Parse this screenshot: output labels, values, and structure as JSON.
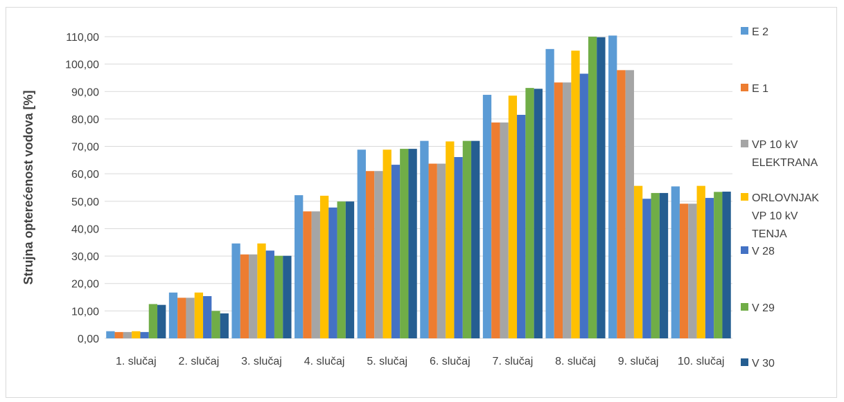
{
  "chart_data": {
    "type": "bar",
    "ylabel": "Strujna opterećenost vodova [%]",
    "xlabel": "",
    "ylim": [
      0,
      110
    ],
    "ytick_step": 10,
    "ytick_labels": [
      "0,00",
      "10,00",
      "20,00",
      "30,00",
      "40,00",
      "50,00",
      "60,00",
      "70,00",
      "80,00",
      "90,00",
      "100,00",
      "110,00"
    ],
    "grid": true,
    "legend_position": "right",
    "categories": [
      "1. slučaj",
      "2. slučaj",
      "3. slučaj",
      "4. slučaj",
      "5. slučaj",
      "6. slučaj",
      "7. slučaj",
      "8. slučaj",
      "9. slučaj",
      "10. slučaj"
    ],
    "series": [
      {
        "name": "E 2",
        "color": "#5b9bd5",
        "values": [
          2.6,
          16.7,
          34.6,
          52.2,
          68.8,
          72.0,
          88.8,
          105.5,
          110.4,
          55.4
        ]
      },
      {
        "name": "E 1",
        "color": "#ed7d31",
        "values": [
          2.3,
          14.8,
          30.6,
          46.3,
          61.0,
          63.7,
          78.7,
          93.3,
          97.8,
          49.1
        ]
      },
      {
        "name": "VP 10 kV ELEKTRANA",
        "legend_lines": [
          "VP 10 kV",
          "ELEKTRANA"
        ],
        "color": "#a5a5a5",
        "values": [
          2.3,
          14.8,
          30.6,
          46.3,
          61.0,
          63.7,
          78.7,
          93.3,
          97.8,
          49.1
        ]
      },
      {
        "name": "ORLOVNJAK VP 10 kV TENJA",
        "legend_lines": [
          "ORLOVNJAK",
          "VP 10 kV",
          "TENJA"
        ],
        "color": "#ffc000",
        "values": [
          2.6,
          16.7,
          34.6,
          52.0,
          68.8,
          71.8,
          88.5,
          104.9,
          55.6,
          55.6
        ]
      },
      {
        "name": "V 28",
        "color": "#4472c4",
        "values": [
          2.3,
          15.4,
          32.0,
          47.7,
          63.3,
          66.1,
          81.5,
          96.5,
          50.9,
          51.2
        ]
      },
      {
        "name": "V 29",
        "color": "#70ad47",
        "values": [
          12.5,
          10.0,
          30.1,
          49.9,
          69.1,
          72.0,
          91.3,
          110.0,
          53.0,
          53.4
        ]
      },
      {
        "name": "V 30",
        "color": "#255e91",
        "values": [
          12.2,
          9.1,
          30.1,
          49.9,
          69.1,
          72.0,
          91.0,
          109.8,
          53.0,
          53.5
        ]
      }
    ]
  }
}
